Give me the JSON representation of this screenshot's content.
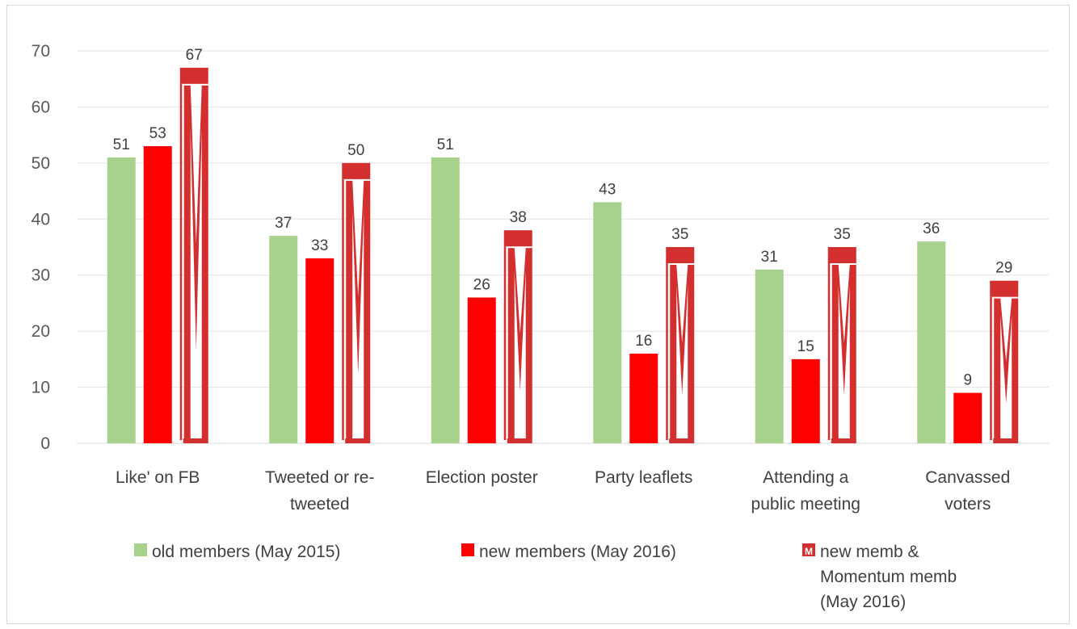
{
  "chart_data": {
    "type": "bar",
    "ylim": [
      0,
      70
    ],
    "yticks": [
      0,
      10,
      20,
      30,
      40,
      50,
      60,
      70
    ],
    "grid": true,
    "legend_placement": "bottom",
    "categories": [
      [
        "Like' on FB"
      ],
      [
        "Tweeted or re-",
        "tweeted"
      ],
      [
        "Election poster"
      ],
      [
        "Party leaflets"
      ],
      [
        "Attending a",
        "public meeting"
      ],
      [
        "Canvassed",
        "voters"
      ]
    ],
    "series": [
      {
        "name": "old members (May 2015)",
        "legend_lines": [
          "old members (May 2015)"
        ],
        "color": "#a9d18e",
        "style": "solid",
        "values": [
          51,
          37,
          51,
          43,
          31,
          36
        ]
      },
      {
        "name": "new members (May 2016)",
        "legend_lines": [
          "new members (May 2016)"
        ],
        "color": "#ff0000",
        "style": "solid",
        "values": [
          53,
          33,
          26,
          16,
          15,
          9
        ]
      },
      {
        "name": "new memb & Momentum memb (May 2016)",
        "legend_lines": [
          "new memb &",
          "Momentum memb",
          " (May 2016)"
        ],
        "color": "#d32f2f",
        "style": "momentum-logo",
        "values": [
          67,
          50,
          38,
          35,
          35,
          29
        ]
      }
    ]
  }
}
